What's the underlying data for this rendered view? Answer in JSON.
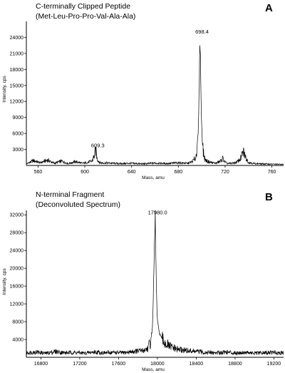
{
  "chart_data": [
    {
      "type": "line",
      "panel_label": "A",
      "title": "C-terminally Clipped Peptide",
      "subtitle": "(Met-Leu-Pro-Pro-Val-Ala-Ala)",
      "xlabel": "Mass, amu",
      "ylabel": "Intensity, cps",
      "xlim": [
        550,
        770
      ],
      "ylim": [
        0,
        27000
      ],
      "x_ticks": [
        560,
        600,
        640,
        680,
        720,
        760
      ],
      "y_ticks": [
        3000,
        6000,
        9000,
        12000,
        15000,
        18000,
        21000,
        24000
      ],
      "grid": false,
      "series": [
        {
          "x": [
            550,
            556,
            562,
            568,
            574,
            580,
            586,
            592,
            598,
            603,
            606,
            608,
            609.3,
            610.5,
            613,
            620,
            630,
            640,
            650,
            660,
            670,
            680,
            688,
            692,
            695,
            697,
            698,
            698.4,
            698.9,
            699.6,
            700.5,
            701.5,
            703,
            707,
            712,
            716,
            718,
            720,
            722,
            726,
            730,
            733,
            735,
            736,
            737.5,
            740,
            745,
            752,
            760,
            770
          ],
          "y": [
            300,
            900,
            500,
            1000,
            400,
            800,
            350,
            700,
            400,
            600,
            800,
            1700,
            2900,
            1200,
            500,
            450,
            350,
            400,
            300,
            450,
            350,
            500,
            400,
            700,
            1500,
            6000,
            16000,
            24200,
            20000,
            10000,
            4500,
            2200,
            1000,
            600,
            400,
            800,
            1300,
            600,
            350,
            400,
            600,
            1200,
            2200,
            2500,
            1500,
            600,
            350,
            300,
            250,
            200
          ]
        }
      ],
      "annotations": [
        {
          "x": 609.3,
          "y": 2900,
          "text": "609.3"
        },
        {
          "x": 698.4,
          "y": 24200,
          "text": "698.4"
        }
      ]
    },
    {
      "type": "line",
      "panel_label": "B",
      "title": "N-terminal Fragment",
      "subtitle": "(Deconvoluted Spectrum)",
      "xlabel": "Mass, amu",
      "ylabel": "Intensity, cps",
      "xlim": [
        16650,
        19300
      ],
      "ylim": [
        0,
        33000
      ],
      "x_ticks": [
        16800,
        17200,
        17600,
        18000,
        18400,
        18800,
        19200
      ],
      "y_ticks": [
        4000,
        8000,
        12000,
        16000,
        20000,
        24000,
        28000,
        32000
      ],
      "grid": false,
      "series": [
        {
          "x": [
            16650,
            16750,
            16850,
            16950,
            17050,
            17150,
            17250,
            17350,
            17450,
            17550,
            17650,
            17750,
            17850,
            17900,
            17930,
            17950,
            17960,
            17970,
            17978,
            17983,
            17990,
            17997,
            18005,
            18015,
            18030,
            18050,
            18080,
            18120,
            18200,
            18300,
            18400,
            18500,
            18600,
            18700,
            18800,
            18900,
            19000,
            19100,
            19200,
            19300
          ],
          "y": [
            1000,
            1200,
            900,
            1300,
            1000,
            1100,
            900,
            1200,
            1000,
            1100,
            1000,
            1300,
            1500,
            2000,
            3500,
            7000,
            16000,
            25000,
            31500,
            24000,
            15000,
            9500,
            7500,
            6000,
            5000,
            4000,
            3200,
            2500,
            1800,
            1500,
            1300,
            1100,
            1000,
            1200,
            1000,
            1100,
            900,
            1000,
            1100,
            1000
          ]
        }
      ],
      "annotations": [
        {
          "x": 17980.0,
          "y": 31500,
          "text": "17980.0"
        }
      ]
    }
  ]
}
